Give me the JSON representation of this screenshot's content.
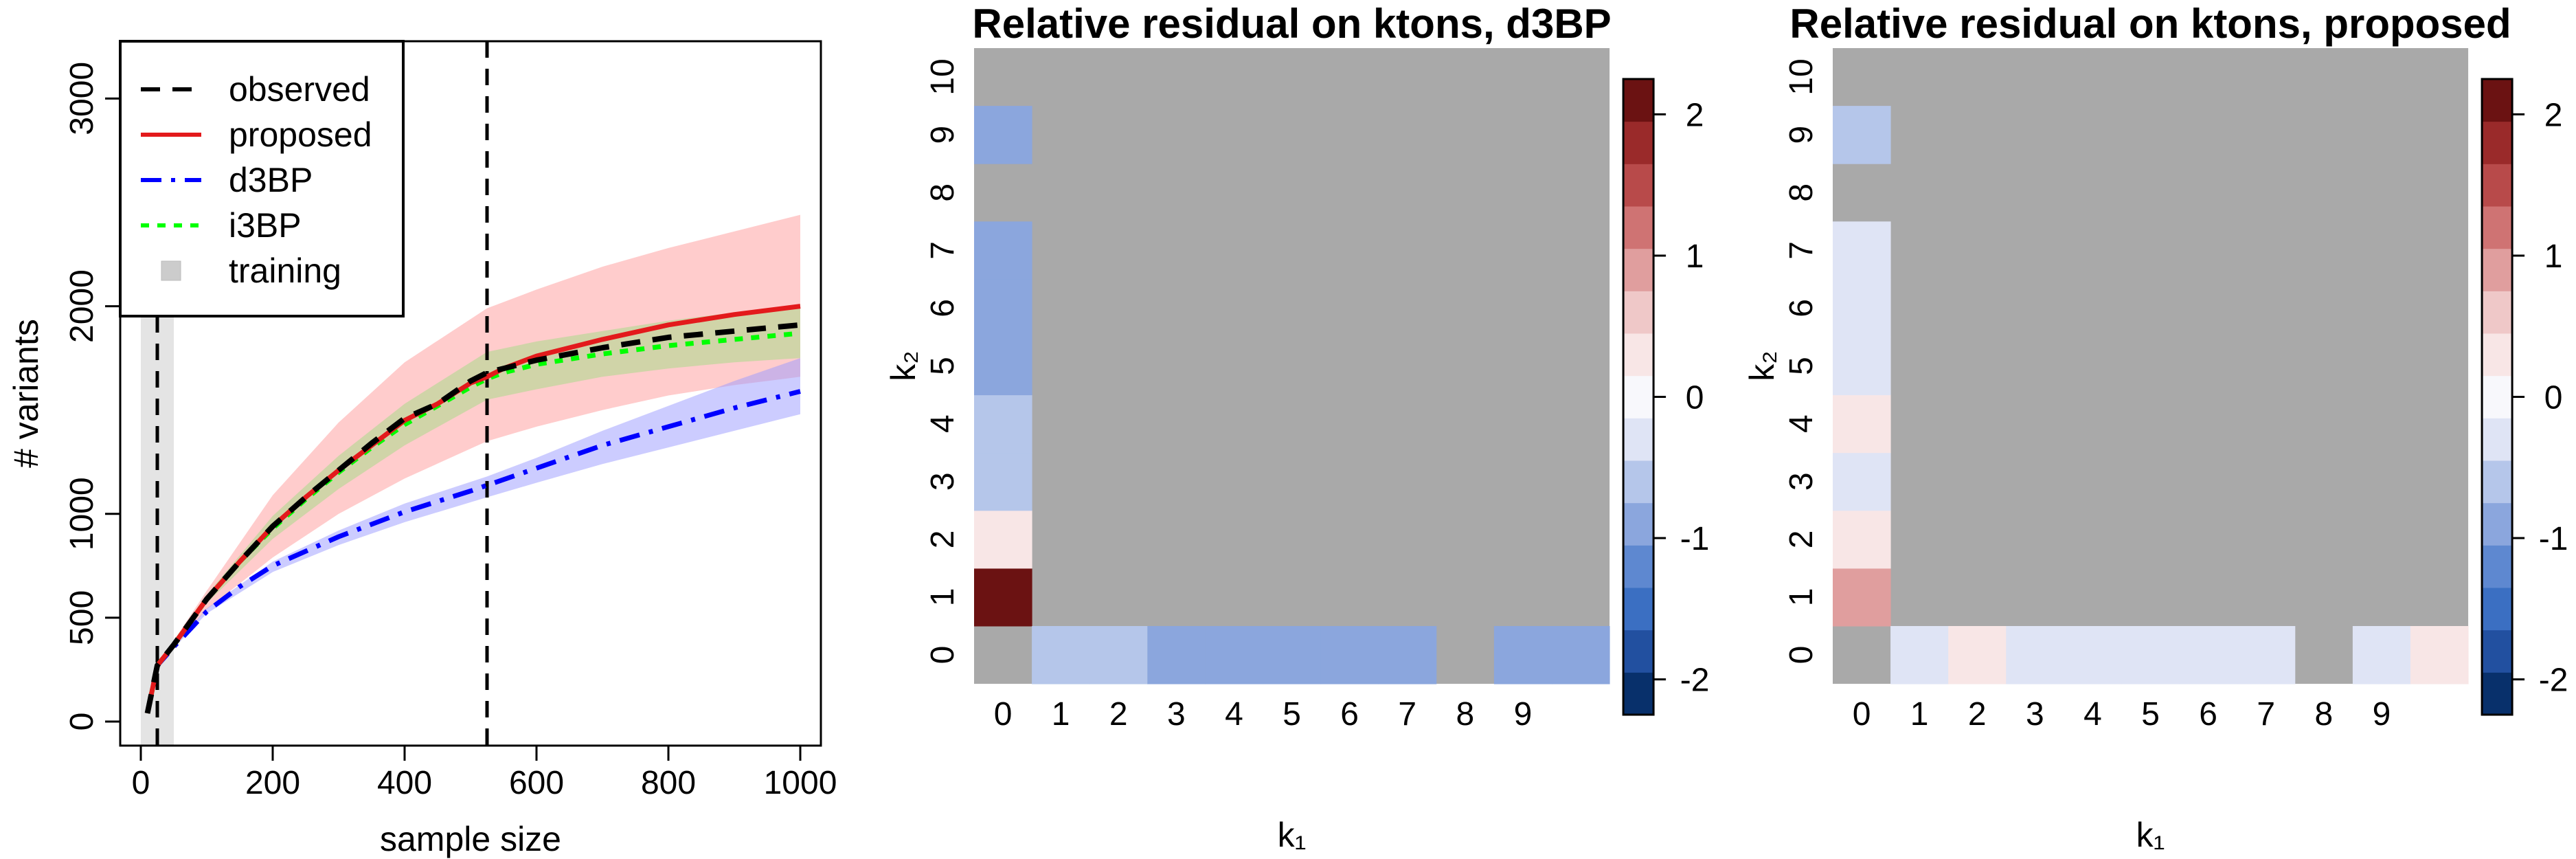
{
  "chart_data": [
    {
      "type": "line",
      "title": "",
      "xlabel": "sample size",
      "ylabel": "# variants",
      "xlim": [
        0,
        1000
      ],
      "ylim": [
        0,
        3000
      ],
      "xticks": [
        0,
        200,
        400,
        600,
        800,
        1000
      ],
      "yticks": [
        0,
        500,
        1000,
        2000,
        3000
      ],
      "training_band": [
        0,
        50
      ],
      "vlines": [
        25,
        525
      ],
      "legend": {
        "placement": "top-left",
        "entries": [
          {
            "label": "observed",
            "style": "dashed",
            "color": "#000000"
          },
          {
            "label": "proposed",
            "style": "solid",
            "color": "#e31a1c"
          },
          {
            "label": "d3BP",
            "style": "dashdot",
            "color": "#0000ff"
          },
          {
            "label": "i3BP",
            "style": "dotted",
            "color": "#00ff00"
          },
          {
            "label": "training",
            "style": "square",
            "color": "#cccccc"
          }
        ]
      },
      "series": [
        {
          "name": "observed",
          "color": "#000000",
          "dash": "dashed",
          "x": [
            10,
            25,
            50,
            100,
            150,
            200,
            250,
            300,
            350,
            400,
            450,
            500,
            525,
            550,
            600,
            700,
            800,
            900,
            1000
          ],
          "y": [
            40,
            270,
            370,
            590,
            770,
            940,
            1080,
            1210,
            1340,
            1460,
            1530,
            1640,
            1680,
            1700,
            1740,
            1800,
            1850,
            1880,
            1910
          ]
        },
        {
          "name": "proposed",
          "color": "#e31a1c",
          "dash": "solid",
          "x": [
            10,
            25,
            50,
            100,
            150,
            200,
            250,
            300,
            350,
            400,
            450,
            500,
            525,
            550,
            600,
            700,
            800,
            900,
            1000
          ],
          "y": [
            40,
            270,
            370,
            590,
            770,
            940,
            1080,
            1210,
            1330,
            1450,
            1530,
            1630,
            1660,
            1700,
            1760,
            1840,
            1910,
            1960,
            2000
          ]
        },
        {
          "name": "d3BP",
          "color": "#0000ff",
          "dash": "dashdot",
          "x": [
            10,
            25,
            50,
            100,
            150,
            200,
            300,
            400,
            500,
            600,
            700,
            800,
            900,
            1000
          ],
          "y": [
            40,
            270,
            360,
            530,
            650,
            750,
            890,
            1010,
            1110,
            1220,
            1330,
            1420,
            1510,
            1590
          ]
        },
        {
          "name": "i3BP",
          "color": "#00ff00",
          "dash": "dotted",
          "x": [
            10,
            25,
            50,
            100,
            150,
            200,
            250,
            300,
            350,
            400,
            450,
            500,
            525,
            550,
            600,
            700,
            800,
            900,
            1000
          ],
          "y": [
            40,
            270,
            370,
            590,
            770,
            930,
            1070,
            1200,
            1320,
            1430,
            1520,
            1610,
            1650,
            1680,
            1720,
            1770,
            1810,
            1840,
            1870
          ]
        }
      ],
      "bands": [
        {
          "name": "proposed-band",
          "color": "#ff9999",
          "opacity": 0.5,
          "x": [
            25,
            100,
            200,
            300,
            400,
            525,
            600,
            700,
            800,
            900,
            1000
          ],
          "lower": [
            270,
            540,
            790,
            1000,
            1170,
            1350,
            1420,
            1500,
            1570,
            1620,
            1660
          ],
          "upper": [
            270,
            630,
            1090,
            1440,
            1730,
            1990,
            2080,
            2190,
            2280,
            2360,
            2440
          ]
        },
        {
          "name": "d3BP-band",
          "color": "#9999ff",
          "opacity": 0.5,
          "x": [
            25,
            100,
            200,
            300,
            400,
            525,
            600,
            700,
            800,
            900,
            1000
          ],
          "lower": [
            270,
            520,
            720,
            850,
            960,
            1080,
            1150,
            1240,
            1320,
            1400,
            1480
          ],
          "upper": [
            270,
            545,
            770,
            920,
            1050,
            1180,
            1270,
            1400,
            1520,
            1640,
            1750
          ]
        },
        {
          "name": "i3BP-band",
          "color": "#b0d890",
          "opacity": 0.6,
          "x": [
            25,
            100,
            200,
            300,
            400,
            525,
            600,
            700,
            800,
            900,
            1000
          ],
          "lower": [
            270,
            570,
            880,
            1120,
            1330,
            1550,
            1600,
            1660,
            1700,
            1730,
            1750
          ],
          "upper": [
            270,
            610,
            990,
            1280,
            1530,
            1780,
            1830,
            1880,
            1930,
            1970,
            2010
          ]
        }
      ]
    },
    {
      "type": "heatmap",
      "title": "Relative residual on ktons, d3BP",
      "xlabel": "k₁",
      "ylabel": "k₂",
      "x_ticks": [
        "0",
        "1",
        "2",
        "3",
        "4",
        "5",
        "6",
        "7",
        "8",
        "9"
      ],
      "y_ticks": [
        "0",
        "1",
        "2",
        "3",
        "4",
        "5",
        "6",
        "7",
        "8",
        "9",
        "10"
      ],
      "na_color": "#a9a9a9",
      "cells": [
        {
          "k1": 0,
          "k2": 1,
          "value": 2.1
        },
        {
          "k1": 0,
          "k2": 2,
          "value": 0.3
        },
        {
          "k1": 0,
          "k2": 3,
          "value": -0.5
        },
        {
          "k1": 0,
          "k2": 4,
          "value": -0.5
        },
        {
          "k1": 0,
          "k2": 5,
          "value": -0.8
        },
        {
          "k1": 0,
          "k2": 6,
          "value": -0.8
        },
        {
          "k1": 0,
          "k2": 7,
          "value": -0.8
        },
        {
          "k1": 0,
          "k2": 9,
          "value": -0.8
        },
        {
          "k1": 1,
          "k2": 0,
          "value": -0.5
        },
        {
          "k1": 2,
          "k2": 0,
          "value": -0.5
        },
        {
          "k1": 3,
          "k2": 0,
          "value": -0.8
        },
        {
          "k1": 4,
          "k2": 0,
          "value": -0.8
        },
        {
          "k1": 5,
          "k2": 0,
          "value": -0.8
        },
        {
          "k1": 6,
          "k2": 0,
          "value": -0.8
        },
        {
          "k1": 7,
          "k2": 0,
          "value": -0.8
        },
        {
          "k1": 9,
          "k2": 0,
          "value": -0.8
        },
        {
          "k1": 10,
          "k2": 0,
          "value": -0.8
        }
      ],
      "colorbar": {
        "ticks": [
          "2",
          "1",
          "0",
          "-1",
          "-2"
        ],
        "tick_values": [
          2,
          1,
          0,
          -1,
          -2
        ],
        "range": [
          -2.25,
          2.25
        ],
        "colors": [
          "#08306b",
          "#2250a0",
          "#3b6fc2",
          "#5e88d0",
          "#8ba6dd",
          "#b5c6ea",
          "#dfe4f5",
          "#f8f8fc",
          "#f8e6e6",
          "#efc8c8",
          "#e09e9e",
          "#cf7373",
          "#b84a4a",
          "#9a2a2a",
          "#6b1212"
        ]
      }
    },
    {
      "type": "heatmap",
      "title": "Relative residual on ktons, proposed",
      "xlabel": "k₁",
      "ylabel": "k₂",
      "x_ticks": [
        "0",
        "1",
        "2",
        "3",
        "4",
        "5",
        "6",
        "7",
        "8",
        "9"
      ],
      "y_ticks": [
        "0",
        "1",
        "2",
        "3",
        "4",
        "5",
        "6",
        "7",
        "8",
        "9",
        "10"
      ],
      "na_color": "#a9a9a9",
      "cells": [
        {
          "k1": 0,
          "k2": 1,
          "value": 0.8
        },
        {
          "k1": 0,
          "k2": 2,
          "value": 0.2
        },
        {
          "k1": 0,
          "k2": 3,
          "value": -0.2
        },
        {
          "k1": 0,
          "k2": 4,
          "value": 0.2
        },
        {
          "k1": 0,
          "k2": 5,
          "value": -0.2
        },
        {
          "k1": 0,
          "k2": 6,
          "value": -0.2
        },
        {
          "k1": 0,
          "k2": 7,
          "value": -0.2
        },
        {
          "k1": 0,
          "k2": 9,
          "value": -0.5
        },
        {
          "k1": 1,
          "k2": 0,
          "value": -0.2
        },
        {
          "k1": 2,
          "k2": 0,
          "value": 0.2
        },
        {
          "k1": 3,
          "k2": 0,
          "value": -0.2
        },
        {
          "k1": 4,
          "k2": 0,
          "value": -0.2
        },
        {
          "k1": 5,
          "k2": 0,
          "value": -0.2
        },
        {
          "k1": 6,
          "k2": 0,
          "value": -0.2
        },
        {
          "k1": 7,
          "k2": 0,
          "value": -0.2
        },
        {
          "k1": 9,
          "k2": 0,
          "value": -0.2
        },
        {
          "k1": 10,
          "k2": 0,
          "value": 0.2
        }
      ],
      "colorbar": {
        "ticks": [
          "2",
          "1",
          "0",
          "-1",
          "-2"
        ],
        "tick_values": [
          2,
          1,
          0,
          -1,
          -2
        ],
        "range": [
          -2.25,
          2.25
        ],
        "colors": [
          "#08306b",
          "#2250a0",
          "#3b6fc2",
          "#5e88d0",
          "#8ba6dd",
          "#b5c6ea",
          "#dfe4f5",
          "#f8f8fc",
          "#f8e6e6",
          "#efc8c8",
          "#e09e9e",
          "#cf7373",
          "#b84a4a",
          "#9a2a2a",
          "#6b1212"
        ]
      }
    }
  ]
}
